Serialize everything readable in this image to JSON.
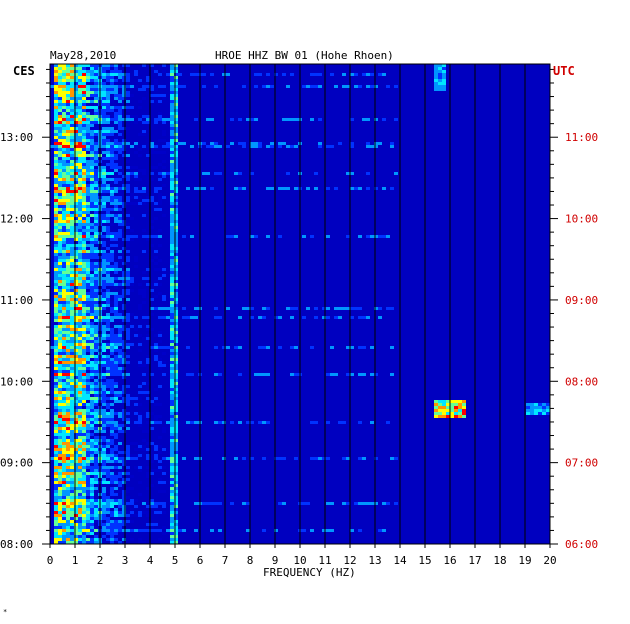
{
  "header": {
    "date": "May28,2010",
    "title": "HROE HHZ BW 01 (Hohe Rhoen)"
  },
  "footer_mark": "*",
  "chart_data": {
    "type": "heatmap",
    "xlabel": "FREQUENCY (HZ)",
    "xlim": [
      0,
      20
    ],
    "x_ticks": [
      "0",
      "1",
      "2",
      "3",
      "4",
      "5",
      "6",
      "7",
      "8",
      "9",
      "10",
      "11",
      "12",
      "13",
      "14",
      "15",
      "16",
      "17",
      "18",
      "19",
      "20"
    ],
    "left_axis": {
      "label": "CES",
      "tick_labels": [
        "13:00",
        "12:00",
        "11:00",
        "10:00",
        "09:00",
        "08:00"
      ],
      "tick_times": [
        13,
        12,
        11,
        10,
        9,
        8
      ],
      "range": [
        8.0,
        13.9
      ]
    },
    "right_axis": {
      "label": "UTC",
      "tick_labels": [
        "11:00",
        "10:00",
        "09:00",
        "08:00",
        "07:00",
        "06:00"
      ],
      "tick_times": [
        11,
        10,
        9,
        8,
        7,
        6
      ],
      "color": "#d00000"
    },
    "colormap": [
      "#00008c",
      "#0000c8",
      "#0032ff",
      "#0096ff",
      "#00e6ff",
      "#64ff96",
      "#ffff00",
      "#ff9600",
      "#ff0000"
    ],
    "background_color": "#0000c0",
    "features": [
      {
        "name": "low-frequency energy band",
        "freq_range_hz": [
          0.2,
          1.5
        ],
        "level": "high"
      },
      {
        "name": "secondary band",
        "freq_range_hz": [
          1.5,
          3.2
        ],
        "level": "medium"
      },
      {
        "name": "5 Hz line",
        "freq_hz": 4.9,
        "level": "medium"
      },
      {
        "name": "16 Hz burst",
        "freq_range_hz": [
          15.5,
          16.5
        ],
        "time_ces": "09:40",
        "level": "high"
      },
      {
        "name": "19.5 Hz patch",
        "freq_range_hz": [
          19.0,
          20.0
        ],
        "time_ces": "09:40",
        "level": "medium"
      }
    ]
  }
}
